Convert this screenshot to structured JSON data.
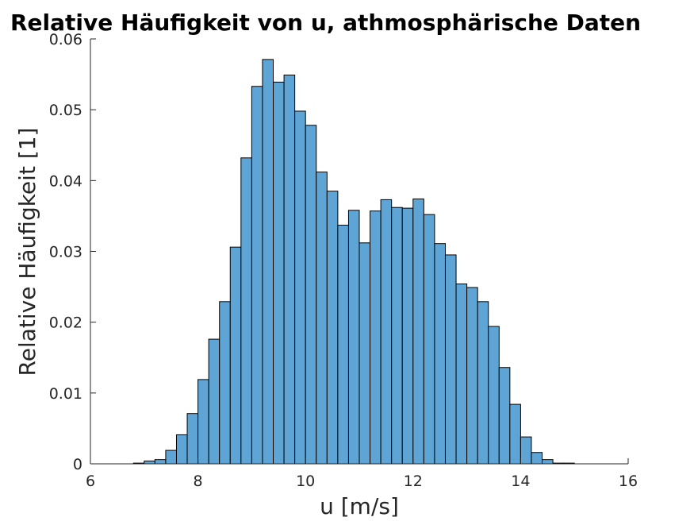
{
  "chart_data": {
    "type": "bar",
    "title": "Relative Häufigkeit von u, athmosphärische Daten",
    "xlabel": "u [m/s]",
    "ylabel": "Relative Häufigkeit [1]",
    "xlim": [
      6,
      16
    ],
    "ylim": [
      0,
      0.06
    ],
    "xticks": [
      "6",
      "8",
      "10",
      "12",
      "14",
      "16"
    ],
    "yticks": [
      "0",
      "0.01",
      "0.02",
      "0.03",
      "0.04",
      "0.05",
      "0.06"
    ],
    "bar_color": "#5ea5d6",
    "edge_color": "#000000",
    "grid": false,
    "bins": {
      "start": 6.8,
      "width": 0.2,
      "values": [
        0.0001,
        0.0004,
        0.0006,
        0.0019,
        0.0041,
        0.0071,
        0.0119,
        0.0176,
        0.0229,
        0.0306,
        0.0432,
        0.0533,
        0.0571,
        0.0539,
        0.0549,
        0.0498,
        0.0478,
        0.0412,
        0.0385,
        0.0337,
        0.0358,
        0.0312,
        0.0357,
        0.0373,
        0.0362,
        0.0361,
        0.0374,
        0.0352,
        0.0311,
        0.0295,
        0.0254,
        0.0249,
        0.0229,
        0.0194,
        0.0136,
        0.0084,
        0.0038,
        0.0016,
        0.0006,
        0.0001,
        0.0001
      ]
    }
  }
}
